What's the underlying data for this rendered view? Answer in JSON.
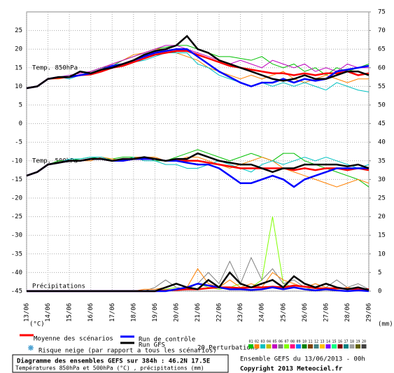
{
  "chart_data": {
    "type": "line",
    "title": "Diagramme des ensembles GEFS sur 384h : 46.2N 17.5E",
    "subtitle": "Températures 850hPa et 500hPa (°C) , précipitations (mm)",
    "run_label": "Ensemble GEFS du 13/06/2013 - 00h",
    "copyright": "Copyright 2013 Meteociel.fr",
    "y_unit": "(°C)",
    "y2_unit": "(mm)",
    "panel_labels": [
      "Temp. 850hPa",
      "Temp. 500hPa",
      "Précipitations"
    ],
    "snow_label": "Risque neige (par rapport a tous les scénarios)",
    "perturbations_label": "20 Perturbations",
    "perturbations": [
      {
        "label": "01",
        "color": "#00c000"
      },
      {
        "label": "02",
        "color": "#ff8000"
      },
      {
        "label": "03",
        "color": "#00c0c0"
      },
      {
        "label": "04",
        "color": "#c0c000"
      },
      {
        "label": "05",
        "color": "#c000c0"
      },
      {
        "label": "06",
        "color": "#808080"
      },
      {
        "label": "07",
        "color": "#80ff00"
      },
      {
        "label": "08",
        "color": "#ff0080"
      },
      {
        "label": "09",
        "color": "#0080ff"
      },
      {
        "label": "10",
        "color": "#008000"
      },
      {
        "label": "11",
        "color": "#804000"
      },
      {
        "label": "12",
        "color": "#408080"
      },
      {
        "label": "13",
        "color": "#ffc000"
      },
      {
        "label": "14",
        "color": "#8000ff"
      },
      {
        "label": "15",
        "color": "#00ff80"
      },
      {
        "label": "16",
        "color": "#800000"
      },
      {
        "label": "17",
        "color": "#008080"
      },
      {
        "label": "18",
        "color": "#a0a0a0"
      },
      {
        "label": "19",
        "color": "#606000"
      },
      {
        "label": "20",
        "color": "#404040"
      }
    ],
    "x": [
      0,
      12,
      24,
      36,
      48,
      60,
      72,
      84,
      96,
      108,
      120,
      132,
      144,
      156,
      168,
      180,
      192,
      204,
      216,
      228,
      240,
      252,
      264,
      276,
      288,
      300,
      312,
      324,
      336,
      348,
      360,
      372,
      384
    ],
    "xlim": [
      0,
      384
    ],
    "xticks": [
      {
        "value": 0,
        "label": "13/06"
      },
      {
        "value": 24,
        "label": "14/06"
      },
      {
        "value": 48,
        "label": "15/06"
      },
      {
        "value": 72,
        "label": "16/06"
      },
      {
        "value": 96,
        "label": "17/06"
      },
      {
        "value": 120,
        "label": "18/06"
      },
      {
        "value": 144,
        "label": "19/06"
      },
      {
        "value": 168,
        "label": "20/06"
      },
      {
        "value": 192,
        "label": "21/06"
      },
      {
        "value": 216,
        "label": "22/06"
      },
      {
        "value": 240,
        "label": "23/06"
      },
      {
        "value": 264,
        "label": "24/06"
      },
      {
        "value": 288,
        "label": "25/06"
      },
      {
        "value": 312,
        "label": "26/06"
      },
      {
        "value": 336,
        "label": "27/06"
      },
      {
        "value": 360,
        "label": "28/06"
      },
      {
        "value": 384,
        "label": "29/06"
      }
    ],
    "ylim": [
      -45,
      30
    ],
    "yticks": [
      25,
      20,
      15,
      10,
      5,
      0,
      -5,
      -10,
      -15,
      -20,
      -25,
      -30,
      -35,
      -40,
      -45
    ],
    "y2lim": [
      0,
      75
    ],
    "y2ticks": [
      75,
      70,
      65,
      60,
      55,
      50,
      45,
      40,
      35,
      30,
      25,
      20,
      15,
      10,
      5,
      0
    ],
    "grid": true,
    "series": [
      {
        "color": "#00c000",
        "values": [
          9.5,
          10,
          12,
          12.5,
          13,
          13,
          14,
          15,
          15.5,
          17,
          18,
          19,
          20,
          20.5,
          21,
          21,
          20,
          19,
          18,
          18,
          17.5,
          17,
          18,
          16,
          15,
          16,
          14,
          15,
          13,
          15,
          14,
          15,
          16
        ]
      },
      {
        "color": "#ff8000",
        "values": [
          9.5,
          10,
          12,
          12,
          12.5,
          13,
          13.5,
          14.5,
          16,
          17,
          18.5,
          19,
          20,
          20,
          19,
          18,
          17,
          15,
          14,
          13,
          12,
          13,
          12,
          13,
          14,
          12,
          11,
          12,
          13,
          12,
          11,
          12,
          12
        ]
      },
      {
        "color": "#00c0c0",
        "values": [
          9.5,
          10,
          12,
          12.5,
          12,
          13,
          13.5,
          14,
          15,
          16,
          16.5,
          17,
          18,
          19,
          19,
          19,
          16,
          15,
          13,
          12,
          11,
          10,
          11,
          10,
          11,
          10,
          11,
          10,
          9,
          11,
          10,
          9,
          8.5
        ]
      },
      {
        "color": "#c000c0",
        "values": [
          9.5,
          10,
          12,
          12.5,
          13,
          13.5,
          14,
          15,
          16,
          17,
          18,
          19,
          20,
          21,
          21,
          20,
          19,
          18,
          17,
          16,
          17,
          16,
          15,
          17,
          16,
          15,
          16,
          14,
          15,
          14,
          16,
          15,
          15
        ]
      },
      {
        "color": "#00c000",
        "values": [
          -14,
          -13,
          -11,
          -10,
          -10,
          -9.5,
          -9,
          -9.5,
          -9.5,
          -9,
          -9,
          -9,
          -10,
          -10,
          -9,
          -8,
          -7,
          -8,
          -9,
          -10,
          -9,
          -8,
          -9,
          -10,
          -8,
          -8,
          -10,
          -11,
          -12,
          -13,
          -14,
          -15,
          -17
        ]
      },
      {
        "color": "#ff8000",
        "values": [
          -14,
          -13,
          -11,
          -10.5,
          -10,
          -10,
          -10,
          -9,
          -9.5,
          -10,
          -9,
          -9,
          -9,
          -10,
          -10,
          -9,
          -9,
          -10,
          -11,
          -12,
          -11,
          -10,
          -9,
          -10,
          -12,
          -13,
          -14,
          -15,
          -16,
          -17,
          -16,
          -15,
          -16
        ]
      },
      {
        "color": "#00c0c0",
        "values": [
          -14,
          -13,
          -11,
          -10.5,
          -9.5,
          -9.5,
          -9,
          -9,
          -10,
          -10,
          -9,
          -10,
          -10,
          -11,
          -11,
          -12,
          -12,
          -11,
          -10,
          -11,
          -12,
          -13,
          -11,
          -10,
          -11,
          -10,
          -9,
          -10,
          -9,
          -10,
          -11,
          -12,
          -11
        ]
      },
      {
        "color": "#80ff00",
        "axis": "y2",
        "values": [
          0,
          0,
          0,
          0,
          0,
          0,
          0,
          0,
          0,
          0,
          0,
          0,
          0,
          0.5,
          1,
          0.5,
          2,
          1,
          0.5,
          1,
          2,
          1,
          3,
          20,
          2,
          1,
          0.5,
          1,
          0.5,
          1,
          0.5,
          1,
          0
        ]
      },
      {
        "color": "#808080",
        "axis": "y2",
        "values": [
          0,
          0,
          0,
          0,
          0,
          0,
          0,
          0,
          0,
          0,
          0,
          0,
          1,
          3,
          1,
          0.5,
          2,
          5,
          2,
          8,
          2,
          9,
          3,
          6,
          2,
          3,
          1,
          2,
          1,
          3,
          1,
          2,
          0.5
        ]
      },
      {
        "color": "#ff8000",
        "axis": "y2",
        "values": [
          0,
          0,
          0,
          0,
          0,
          0,
          0,
          0,
          0,
          0,
          0,
          0.5,
          0.5,
          1,
          2,
          1,
          6,
          2,
          1,
          3,
          1,
          2,
          1,
          5,
          3,
          2,
          1,
          2,
          1,
          0.5,
          1,
          0.5,
          0.5
        ]
      },
      {
        "name": "Moyenne des scénarios",
        "color": "#ff0000",
        "values": [
          9.5,
          10,
          12,
          12.3,
          12.5,
          13,
          13.2,
          14,
          15,
          15.5,
          16.5,
          17.5,
          18.5,
          19,
          19.5,
          19.5,
          18.5,
          17.5,
          16.5,
          15.5,
          15,
          14.5,
          14,
          13.5,
          13.5,
          13,
          13.5,
          13,
          13.5,
          13.5,
          14,
          13,
          13.5
        ]
      },
      {
        "name": "Run de contrôle",
        "color": "#0000ff",
        "values": [
          9.5,
          10,
          12,
          12.5,
          12.5,
          13,
          13.5,
          14.5,
          15.5,
          16,
          17,
          18,
          19,
          19.5,
          20,
          20,
          18,
          16,
          14,
          12.5,
          11,
          10,
          11,
          11,
          12,
          11,
          12,
          11.5,
          12,
          14,
          14.5,
          15,
          15.5
        ]
      },
      {
        "name": "Run GFS",
        "color": "#000000",
        "values": [
          9.5,
          10,
          12,
          12.5,
          12.5,
          14,
          13.5,
          14.5,
          15,
          16,
          17,
          18.5,
          19.5,
          20,
          21,
          23.5,
          20,
          19,
          17,
          16,
          15,
          14,
          13,
          12,
          11.5,
          12,
          13,
          12,
          12,
          13,
          14,
          14,
          13
        ]
      },
      {
        "color": "#ff0000",
        "values": [
          -14,
          -13,
          -11,
          -10.5,
          -10,
          -10,
          -9.5,
          -9.5,
          -10,
          -10,
          -9.5,
          -9.5,
          -9.5,
          -10,
          -10,
          -10,
          -10,
          -10.5,
          -11,
          -11.5,
          -12,
          -12,
          -12,
          -12,
          -12,
          -12.5,
          -12,
          -12.5,
          -12,
          -12,
          -12.5,
          -12,
          -12.5
        ]
      },
      {
        "color": "#0000ff",
        "values": [
          -14,
          -13,
          -11,
          -10.5,
          -10,
          -10,
          -9.5,
          -9.5,
          -10,
          -10,
          -9.5,
          -9.5,
          -9.5,
          -10,
          -10,
          -10.5,
          -11,
          -11,
          -12,
          -14,
          -16,
          -16,
          -15,
          -14,
          -15,
          -17,
          -15,
          -14,
          -13,
          -12,
          -12,
          -12,
          -12
        ]
      },
      {
        "color": "#000000",
        "values": [
          -14,
          -13,
          -11,
          -10.5,
          -10,
          -10,
          -9.5,
          -9.5,
          -10,
          -9.5,
          -9.5,
          -9,
          -9.5,
          -10,
          -9.5,
          -9.5,
          -8,
          -9,
          -10,
          -10.5,
          -11,
          -11,
          -12,
          -13,
          -12,
          -12,
          -11,
          -11,
          -11,
          -11,
          -11.5,
          -11,
          -12
        ]
      },
      {
        "color": "#ff0000",
        "axis": "y2",
        "values": [
          0,
          0,
          0,
          0,
          0,
          0,
          0,
          0,
          0,
          0,
          0,
          0,
          0,
          0.2,
          0.3,
          0.5,
          0.5,
          0.8,
          1,
          1,
          0.8,
          1,
          1,
          1.2,
          1,
          1.5,
          1.2,
          0.8,
          0.7,
          0.8,
          0.6,
          0.5,
          0.5
        ]
      },
      {
        "color": "#0000ff",
        "axis": "y2",
        "values": [
          0,
          0,
          0,
          0,
          0,
          0,
          0,
          0,
          0,
          0,
          0,
          0,
          0,
          0,
          0.5,
          1,
          2,
          1.5,
          1,
          0.5,
          0.5,
          0.3,
          0.5,
          1,
          0.5,
          1,
          0.5,
          0.2,
          0.5,
          0.2,
          0,
          0.2,
          0
        ]
      },
      {
        "color": "#000000",
        "axis": "y2",
        "values": [
          0,
          0,
          0,
          0,
          0,
          0,
          0,
          0,
          0,
          0,
          0,
          0,
          0,
          1,
          2,
          1,
          0.5,
          3,
          1,
          5,
          2,
          1,
          2,
          3,
          1,
          4,
          2,
          1,
          2,
          1,
          0.5,
          1,
          0.3
        ]
      }
    ]
  }
}
